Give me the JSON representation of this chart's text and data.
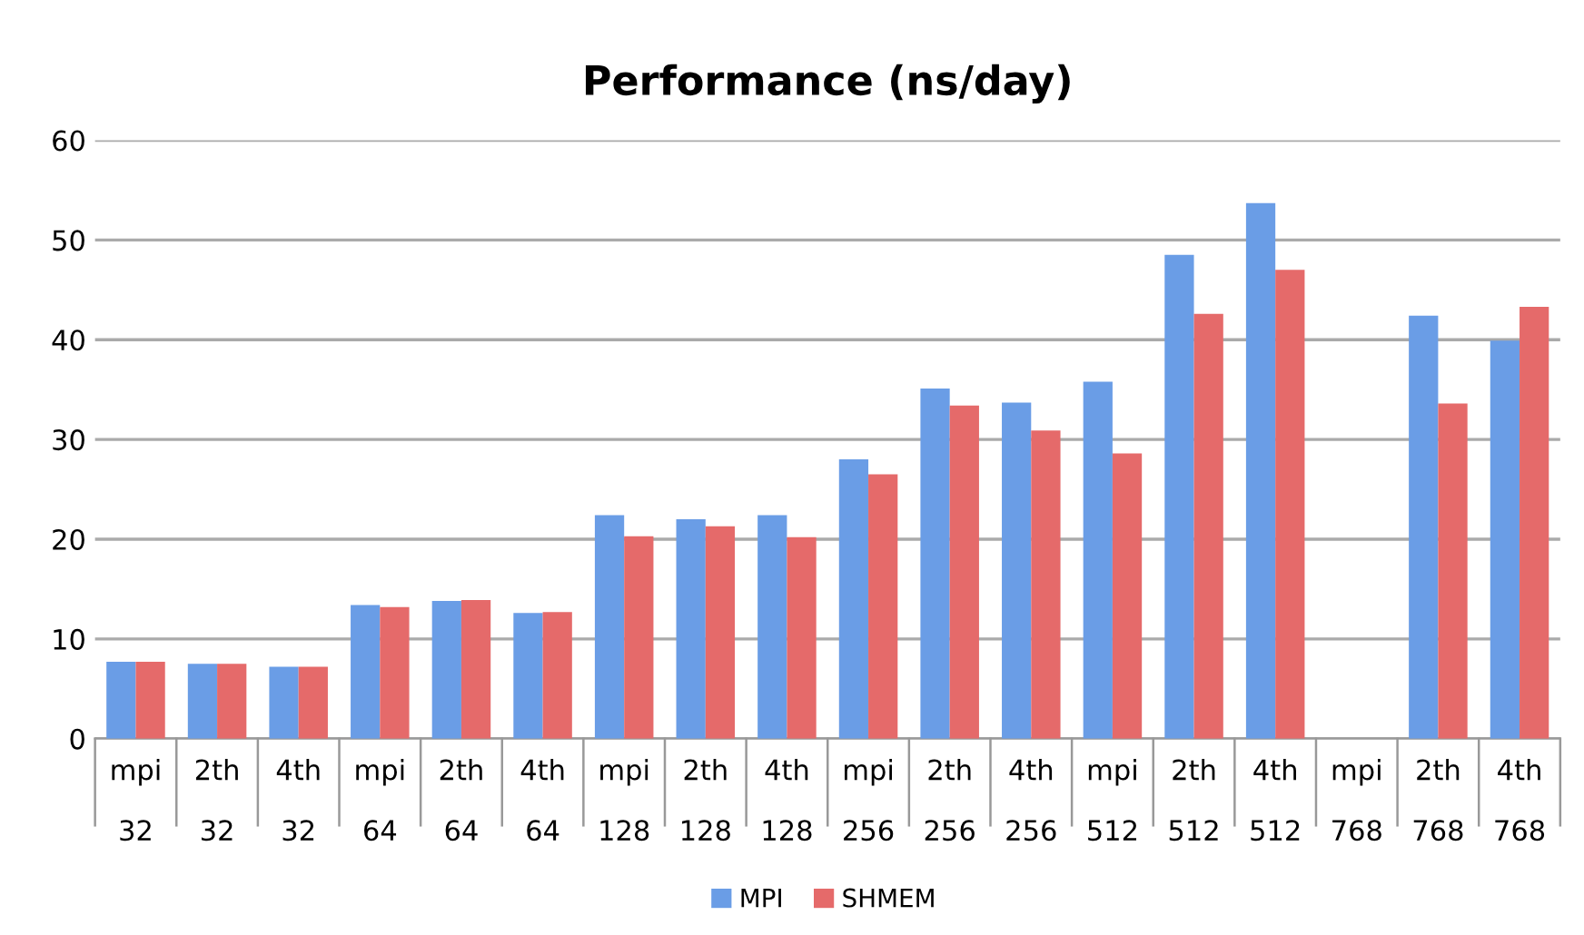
{
  "chart_data": {
    "type": "bar",
    "title": "Performance (ns/day)",
    "categories": [
      "mpi\n32",
      "2th\n32",
      "4th\n32",
      "mpi\n64",
      "2th\n64",
      "4th\n64",
      "mpi\n128",
      "2th\n128",
      "4th\n128",
      "mpi\n256",
      "2th\n256",
      "4th\n256",
      "mpi\n512",
      "2th\n512",
      "4th\n512",
      "mpi\n768",
      "2th\n768",
      "4th\n768"
    ],
    "series": [
      {
        "name": "MPI",
        "color": "#6a9de6",
        "values": [
          7.7,
          7.5,
          7.2,
          13.4,
          13.8,
          12.6,
          22.4,
          22.0,
          22.4,
          28.0,
          35.1,
          33.7,
          35.8,
          48.5,
          53.7,
          null,
          42.4,
          39.9
        ]
      },
      {
        "name": "SHMEM",
        "color": "#e56a6a",
        "values": [
          7.7,
          7.5,
          7.2,
          13.2,
          13.9,
          12.7,
          20.3,
          21.3,
          20.2,
          26.5,
          33.4,
          30.9,
          28.6,
          42.6,
          47.0,
          null,
          33.6,
          43.3
        ]
      }
    ],
    "ylim": [
      0,
      60
    ],
    "yticks": [
      0,
      10,
      20,
      30,
      40,
      50,
      60
    ],
    "grid": "y",
    "legend": "bottom"
  }
}
